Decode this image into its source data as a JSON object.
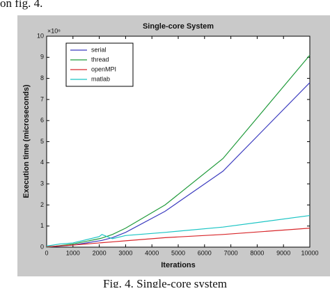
{
  "page_text": {
    "top": "on fig. 4.",
    "caption": "Fig. 4. Single-core system"
  },
  "chart_data": {
    "type": "line",
    "title": "Single-core System",
    "x_label": "Iterations",
    "y_label": "Execution time (microseconds)",
    "exponent_label": "×10⁶",
    "x": [
      0,
      500,
      1000,
      2000,
      2100,
      2500,
      3000,
      4500,
      6700,
      10000
    ],
    "series": [
      {
        "name": "serial",
        "color": "#3b3bbf",
        "values": [
          0,
          0.05,
          0.1,
          0.3,
          0.32,
          0.45,
          0.7,
          1.7,
          3.6,
          7.8
        ]
      },
      {
        "name": "thread",
        "color": "#1f9a3a",
        "values": [
          0,
          0.07,
          0.15,
          0.4,
          0.43,
          0.6,
          0.9,
          2.0,
          4.2,
          9.1
        ]
      },
      {
        "name": "openMPI",
        "color": "#d8262a",
        "values": [
          0.02,
          0.06,
          0.1,
          0.2,
          0.21,
          0.25,
          0.3,
          0.45,
          0.6,
          0.9
        ]
      },
      {
        "name": "matlab",
        "color": "#19c4c4",
        "values": [
          0.05,
          0.15,
          0.2,
          0.5,
          0.6,
          0.4,
          0.55,
          0.7,
          0.95,
          1.5
        ]
      }
    ],
    "xlim": [
      0,
      10000
    ],
    "xticks": [
      0,
      1000,
      2000,
      3000,
      4000,
      5000,
      6000,
      7000,
      8000,
      9000,
      10000
    ],
    "ylim": [
      0,
      10
    ],
    "yticks": [
      0,
      1,
      2,
      3,
      4,
      5,
      6,
      7,
      8,
      9,
      10
    ],
    "legend": "upper-left",
    "grid": false
  }
}
